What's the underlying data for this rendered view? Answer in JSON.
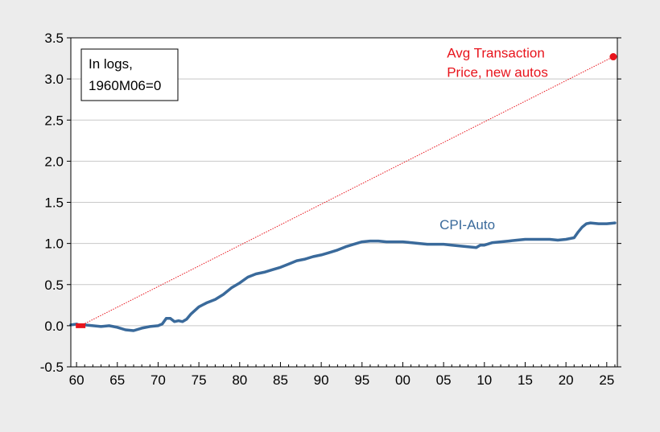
{
  "chart_data": {
    "type": "line",
    "title": "",
    "xlabel": "",
    "ylabel": "",
    "xlim": [
      1959.3,
      2026.3
    ],
    "ylim": [
      -0.5,
      3.5
    ],
    "y_ticks": [
      -0.5,
      0.0,
      0.5,
      1.0,
      1.5,
      2.0,
      2.5,
      3.0,
      3.5
    ],
    "y_tick_labels": [
      "-0.5",
      "0.0",
      "0.5",
      "1.0",
      "1.5",
      "2.0",
      "2.5",
      "3.0",
      "3.5"
    ],
    "x_ticks": [
      1960,
      1965,
      1970,
      1975,
      1980,
      1985,
      1990,
      1995,
      2000,
      2005,
      2010,
      2015,
      2020,
      2025
    ],
    "x_tick_labels": [
      "60",
      "65",
      "70",
      "75",
      "80",
      "85",
      "90",
      "95",
      "00",
      "05",
      "10",
      "15",
      "20",
      "25"
    ],
    "grid": "horizontal",
    "annotation_box": {
      "lines": [
        "In logs,",
        "1960M06=0"
      ]
    },
    "colors": {
      "cpi_auto": "#3a6a9b",
      "atp": "#e8141c",
      "grid": "#c8c8c8",
      "plot_bg": "#ffffff",
      "page_bg": "#ececec"
    },
    "series": [
      {
        "name": "CPI-Auto",
        "label_lines": [
          "CPI-Auto"
        ],
        "label_anchor": {
          "x": 2004.5,
          "y": 1.23
        },
        "style": "solid-thick",
        "points": [
          [
            1959.3,
            0.01
          ],
          [
            1960.0,
            0.02
          ],
          [
            1960.5,
            0.0
          ],
          [
            1961.0,
            0.01
          ],
          [
            1962.0,
            0.0
          ],
          [
            1963.0,
            -0.01
          ],
          [
            1964.0,
            0.0
          ],
          [
            1965.0,
            -0.02
          ],
          [
            1966.0,
            -0.05
          ],
          [
            1967.0,
            -0.06
          ],
          [
            1968.0,
            -0.03
          ],
          [
            1969.0,
            -0.01
          ],
          [
            1970.0,
            0.0
          ],
          [
            1970.5,
            0.02
          ],
          [
            1971.0,
            0.09
          ],
          [
            1971.5,
            0.09
          ],
          [
            1972.0,
            0.05
          ],
          [
            1972.5,
            0.06
          ],
          [
            1973.0,
            0.05
          ],
          [
            1973.5,
            0.08
          ],
          [
            1974.0,
            0.14
          ],
          [
            1975.0,
            0.23
          ],
          [
            1976.0,
            0.28
          ],
          [
            1977.0,
            0.32
          ],
          [
            1978.0,
            0.38
          ],
          [
            1979.0,
            0.46
          ],
          [
            1980.0,
            0.52
          ],
          [
            1981.0,
            0.59
          ],
          [
            1982.0,
            0.63
          ],
          [
            1983.0,
            0.65
          ],
          [
            1984.0,
            0.68
          ],
          [
            1985.0,
            0.71
          ],
          [
            1986.0,
            0.75
          ],
          [
            1987.0,
            0.79
          ],
          [
            1988.0,
            0.81
          ],
          [
            1989.0,
            0.84
          ],
          [
            1990.0,
            0.86
          ],
          [
            1991.0,
            0.89
          ],
          [
            1992.0,
            0.92
          ],
          [
            1993.0,
            0.96
          ],
          [
            1994.0,
            0.99
          ],
          [
            1995.0,
            1.02
          ],
          [
            1996.0,
            1.03
          ],
          [
            1997.0,
            1.03
          ],
          [
            1998.0,
            1.02
          ],
          [
            1999.0,
            1.02
          ],
          [
            2000.0,
            1.02
          ],
          [
            2001.0,
            1.01
          ],
          [
            2002.0,
            1.0
          ],
          [
            2003.0,
            0.99
          ],
          [
            2004.0,
            0.99
          ],
          [
            2005.0,
            0.99
          ],
          [
            2006.0,
            0.98
          ],
          [
            2007.0,
            0.97
          ],
          [
            2008.0,
            0.96
          ],
          [
            2009.0,
            0.95
          ],
          [
            2009.5,
            0.98
          ],
          [
            2010.0,
            0.98
          ],
          [
            2011.0,
            1.01
          ],
          [
            2012.0,
            1.02
          ],
          [
            2013.0,
            1.03
          ],
          [
            2014.0,
            1.04
          ],
          [
            2015.0,
            1.05
          ],
          [
            2016.0,
            1.05
          ],
          [
            2017.0,
            1.05
          ],
          [
            2018.0,
            1.05
          ],
          [
            2019.0,
            1.04
          ],
          [
            2020.0,
            1.05
          ],
          [
            2021.0,
            1.07
          ],
          [
            2021.5,
            1.14
          ],
          [
            2022.0,
            1.2
          ],
          [
            2022.5,
            1.24
          ],
          [
            2023.0,
            1.25
          ],
          [
            2024.0,
            1.24
          ],
          [
            2025.0,
            1.24
          ],
          [
            2026.0,
            1.25
          ]
        ]
      },
      {
        "name": "Avg Transaction Price, new autos",
        "label_lines": [
          "Avg Transaction",
          "Price, new autos"
        ],
        "label_anchor": {
          "x": 2005.4,
          "y": 3.32
        },
        "style": "dotted-with-endpoints",
        "points": [
          [
            1960.5,
            0.0
          ],
          [
            2025.8,
            3.27
          ]
        ]
      }
    ]
  }
}
